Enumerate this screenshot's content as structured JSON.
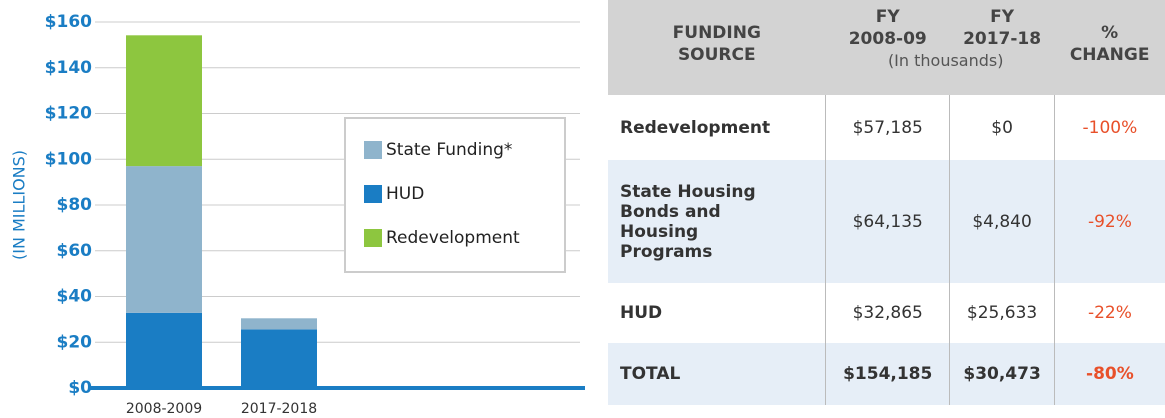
{
  "chart_data": {
    "type": "stacked_bar",
    "y_label": "(IN MILLIONS)",
    "categories": [
      "2008-2009",
      "2017-2018"
    ],
    "series": [
      {
        "name": "HUD",
        "color": "#1a7dc4",
        "values": [
          32.865,
          25.633
        ]
      },
      {
        "name": "State Funding*",
        "color": "#8fb4cc",
        "values": [
          64.135,
          4.84
        ]
      },
      {
        "name": "Redevelopment",
        "color": "#8dc63f",
        "values": [
          57.185,
          0
        ]
      }
    ],
    "ylim": [
      0,
      160
    ],
    "yticks": [
      {
        "value": 0,
        "label": "$0"
      },
      {
        "value": 20,
        "label": "$20"
      },
      {
        "value": 40,
        "label": "$40"
      },
      {
        "value": 60,
        "label": "$60"
      },
      {
        "value": 80,
        "label": "$80"
      },
      {
        "value": 100,
        "label": "$100"
      },
      {
        "value": 120,
        "label": "$120"
      },
      {
        "value": 140,
        "label": "$140"
      },
      {
        "value": 160,
        "label": "$160"
      }
    ],
    "grid": true
  },
  "table": {
    "headers": [
      "FUNDING SOURCE",
      "FY 2008-09",
      "FY 2017-18",
      "% CHANGE"
    ],
    "subheader": "(In thousands)",
    "rows": [
      [
        "Redevelopment",
        "$57,185",
        "$0",
        "-100%"
      ],
      [
        "State Housing Bonds and Housing Programs",
        "$64,135",
        "$4,840",
        "-92%"
      ],
      [
        "HUD",
        "$32,865",
        "$25,633",
        "-22%"
      ],
      [
        "TOTAL",
        "$154,185",
        "$30,473",
        "-80%"
      ]
    ]
  }
}
